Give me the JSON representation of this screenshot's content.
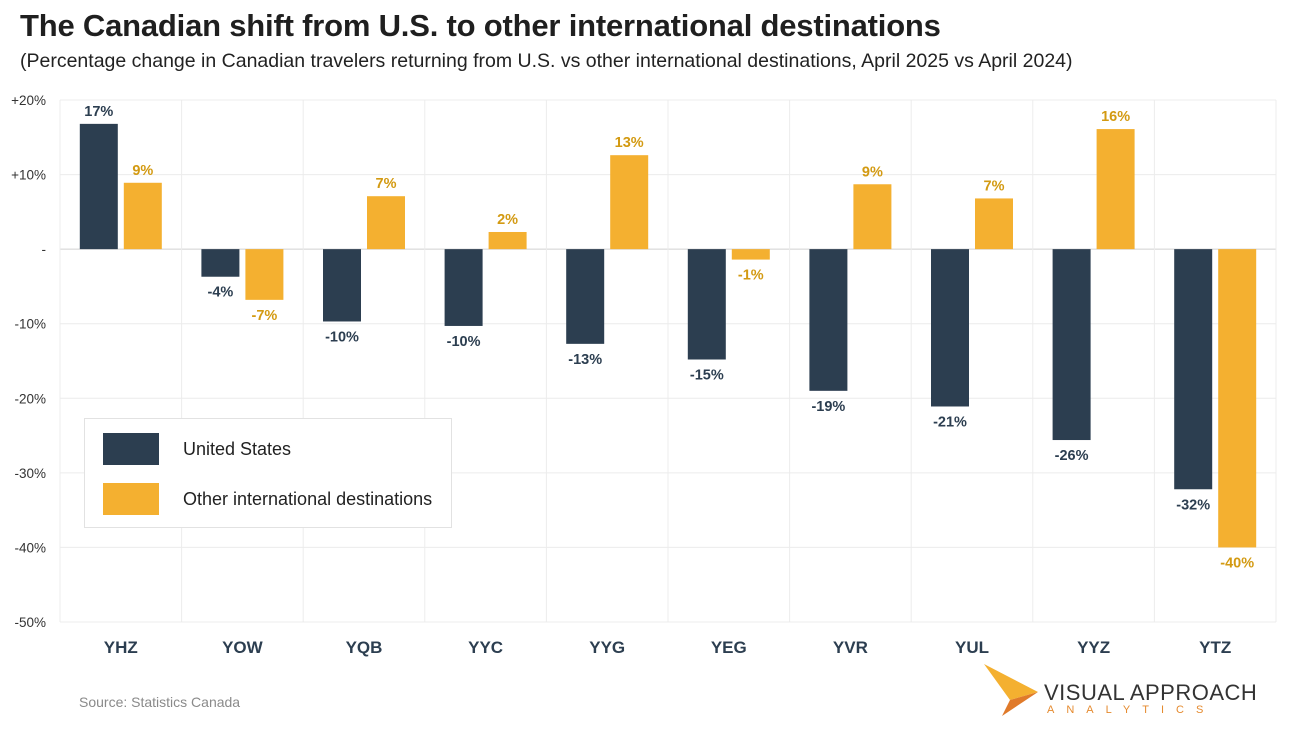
{
  "chart_data": {
    "type": "bar",
    "title": "The Canadian shift from U.S. to other international destinations",
    "subtitle": "(Percentage change in Canadian travelers returning from U.S. vs other international destinations, April 2025 vs April 2024)",
    "categories": [
      "YHZ",
      "YOW",
      "YQB",
      "YYC",
      "YYG",
      "YEG",
      "YVR",
      "YUL",
      "YYZ",
      "YTZ"
    ],
    "series": [
      {
        "name": "United States",
        "color": "#2c3e50",
        "values": [
          16.8,
          -3.7,
          -9.7,
          -10.3,
          -12.7,
          -14.8,
          -19,
          -21.1,
          -25.6,
          -32.2
        ],
        "labels": [
          "17%",
          "-4%",
          "-10%",
          "-10%",
          "-13%",
          "-15%",
          "-19%",
          "-21%",
          "-26%",
          "-32%"
        ]
      },
      {
        "name": "Other international destinations",
        "color": "#f4b030",
        "values": [
          8.9,
          -6.8,
          7.1,
          2.3,
          12.6,
          -1.4,
          8.7,
          6.8,
          16.1,
          -40
        ],
        "labels": [
          "9%",
          "-7%",
          "7%",
          "2%",
          "13%",
          "-1%",
          "9%",
          "7%",
          "16%",
          "-40%"
        ]
      }
    ],
    "ylim": [
      -50,
      20
    ],
    "yticks": [
      {
        "value": 20,
        "label": "+20%"
      },
      {
        "value": 10,
        "label": "+10%"
      },
      {
        "value": 0,
        "label": "-"
      },
      {
        "value": -10,
        "label": "-10%"
      },
      {
        "value": -20,
        "label": "-20%"
      },
      {
        "value": -30,
        "label": "-30%"
      },
      {
        "value": -40,
        "label": "-40%"
      },
      {
        "value": -50,
        "label": "-50%"
      }
    ],
    "legend_position": "bottom-left",
    "grid": true
  },
  "source": "Source: Statistics Canada",
  "logo": {
    "name": "VISUAL APPROACH",
    "sub": "ANALYTICS",
    "colors": {
      "light": "#f4b030",
      "dark": "#e07a2a"
    }
  }
}
